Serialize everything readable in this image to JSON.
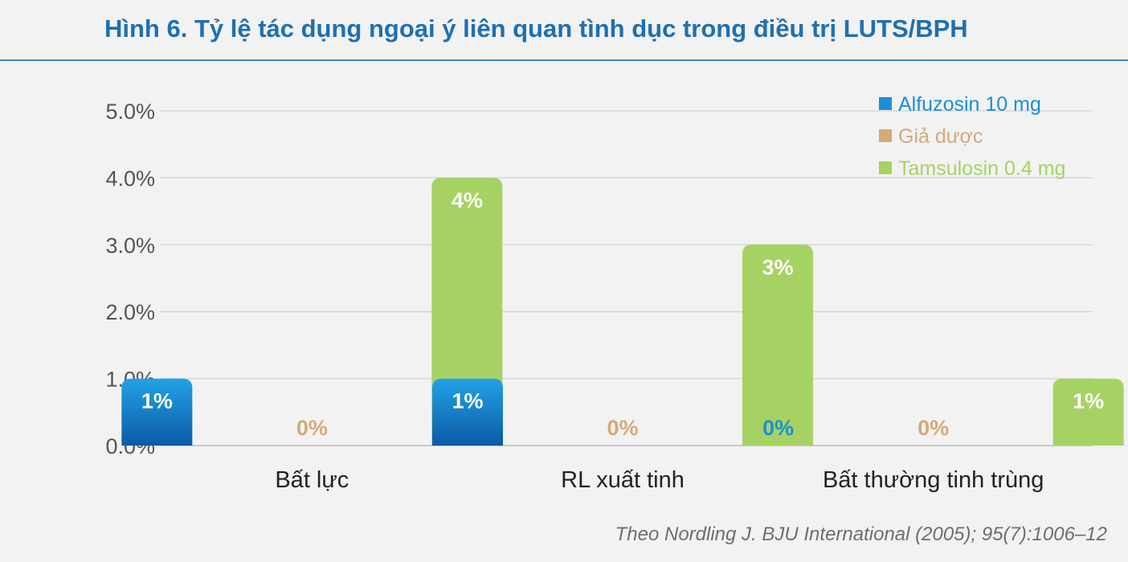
{
  "title": "Hình 6. Tỷ lệ tác dụng ngoại ý liên quan tình dục trong điều trị LUTS/BPH",
  "source": "Theo Nordling J. BJU International (2005); 95(7):1006–12",
  "chart_data": {
    "type": "bar",
    "categories": [
      "Bất lực",
      "RL xuất tinh",
      "Bất thường tinh trùng"
    ],
    "series": [
      {
        "name": "Alfuzosin 10 mg",
        "values": [
          1,
          1,
          0
        ],
        "labels": [
          "1%",
          "1%",
          "0%"
        ],
        "color": "#1b8fd6"
      },
      {
        "name": "Giả dược",
        "values": [
          0,
          0,
          0
        ],
        "labels": [
          "0%",
          "0%",
          "0%"
        ],
        "color": "#d4aa78"
      },
      {
        "name": "Tamsulosin 0.4 mg",
        "values": [
          4,
          3,
          1
        ],
        "labels": [
          "4%",
          "3%",
          "1%"
        ],
        "color": "#a6d263"
      }
    ],
    "ylim": [
      0,
      5
    ],
    "yticks": [
      "0.0%",
      "1.0%",
      "2.0%",
      "3.0%",
      "4.0%",
      "5.0%"
    ],
    "grid": true,
    "legend": "top-right",
    "xlabel": "",
    "ylabel": ""
  }
}
